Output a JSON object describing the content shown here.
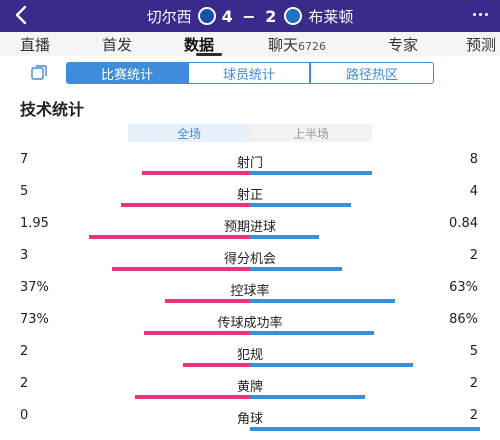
{
  "header": {
    "home_team": "切尔西",
    "score": "4 − 2",
    "away_team": "布莱顿",
    "home_badge_color": "#1b4ea8",
    "away_badge_color": "#1e74c6"
  },
  "tabs": [
    {
      "label": "直播",
      "active": false
    },
    {
      "label": "首发",
      "active": false
    },
    {
      "label": "数据",
      "active": true
    },
    {
      "label": "聊天",
      "count": "6726",
      "active": false
    },
    {
      "label": "专家",
      "active": false
    },
    {
      "label": "预测",
      "active": false
    }
  ],
  "segments": [
    {
      "label": "比赛统计",
      "active": true
    },
    {
      "label": "球员统计",
      "active": false
    },
    {
      "label": "路径热区",
      "active": false
    }
  ],
  "section_title": "技术统计",
  "periods": [
    {
      "label": "全场",
      "active": true
    },
    {
      "label": "上半场",
      "active": false
    }
  ],
  "stats": [
    {
      "label": "射门",
      "home": "7",
      "away": "8",
      "home_fraction": 0.47,
      "away_fraction": 0.53
    },
    {
      "label": "射正",
      "home": "5",
      "away": "4",
      "home_fraction": 0.56,
      "away_fraction": 0.44
    },
    {
      "label": "预期进球",
      "home": "1.95",
      "away": "0.84",
      "home_fraction": 0.7,
      "away_fraction": 0.3
    },
    {
      "label": "得分机会",
      "home": "3",
      "away": "2",
      "home_fraction": 0.6,
      "away_fraction": 0.4
    },
    {
      "label": "控球率",
      "home": "37%",
      "away": "63%",
      "home_fraction": 0.37,
      "away_fraction": 0.63
    },
    {
      "label": "传球成功率",
      "home": "73%",
      "away": "86%",
      "home_fraction": 0.46,
      "away_fraction": 0.54
    },
    {
      "label": "犯规",
      "home": "2",
      "away": "5",
      "home_fraction": 0.29,
      "away_fraction": 0.71
    },
    {
      "label": "黄牌",
      "home": "2",
      "away": "2",
      "home_fraction": 0.5,
      "away_fraction": 0.5
    },
    {
      "label": "角球",
      "home": "0",
      "away": "2",
      "home_fraction": 0.0,
      "away_fraction": 1.0
    }
  ],
  "colors": {
    "header_bg": "#3a2a8c",
    "accent_blue": "#3d8ddb",
    "home_bar": "#e2377a",
    "away_bar": "#3a8fd8"
  }
}
